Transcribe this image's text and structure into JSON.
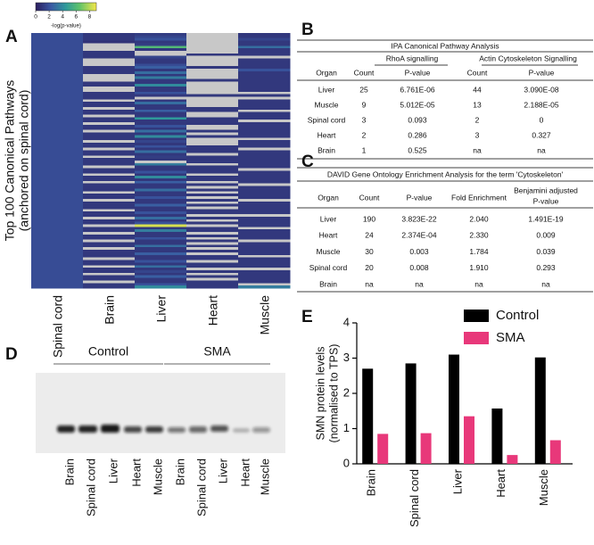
{
  "panel_a": {
    "letter": "A",
    "colorbar": {
      "label": "-log(p-value)",
      "clim": [
        0,
        9
      ],
      "ticks": [
        0,
        2,
        4,
        6,
        8
      ]
    },
    "ylabel": [
      "Top 100 Canonical Pathways",
      "(anchored on spinal cord)"
    ],
    "columns": [
      "Spinal cord",
      "Brain",
      "Liver",
      "Heart",
      "Muscle"
    ],
    "rows": [
      [
        1.8,
        1,
        1.2,
        null,
        1
      ],
      [
        1.8,
        1,
        1.5,
        null,
        1
      ],
      [
        1.8,
        1,
        2,
        null,
        1.5
      ],
      [
        1.8,
        0.8,
        1,
        null,
        1
      ],
      [
        1.8,
        null,
        1.2,
        null,
        1
      ],
      [
        1.8,
        null,
        6,
        null,
        3
      ],
      [
        1.8,
        null,
        1,
        null,
        1
      ],
      [
        1.8,
        1,
        null,
        null,
        1
      ],
      [
        1.8,
        1,
        null,
        1,
        1
      ],
      [
        1.8,
        1,
        1.5,
        null,
        null
      ],
      [
        1.8,
        null,
        1,
        null,
        1
      ],
      [
        1.8,
        null,
        1,
        null,
        1
      ],
      [
        1.8,
        null,
        1.8,
        null,
        1
      ],
      [
        1.8,
        1,
        2.5,
        1,
        1
      ],
      [
        1.8,
        1,
        1,
        null,
        2
      ],
      [
        1.8,
        1,
        3,
        null,
        1
      ],
      [
        1.8,
        null,
        1,
        null,
        1
      ],
      [
        1.8,
        null,
        3.5,
        null,
        1
      ],
      [
        1.8,
        null,
        1,
        1,
        1
      ],
      [
        1.8,
        1,
        1,
        null,
        1
      ],
      [
        1.8,
        1,
        4,
        null,
        1
      ],
      [
        1.8,
        null,
        1,
        null,
        1
      ],
      [
        1.8,
        null,
        1,
        null,
        1
      ],
      [
        1.8,
        1,
        2,
        null,
        null
      ],
      [
        1.8,
        1,
        1,
        1,
        1
      ],
      [
        1.8,
        1,
        null,
        null,
        null
      ],
      [
        1.8,
        null,
        1,
        null,
        1
      ],
      [
        1.8,
        1,
        3,
        null,
        1
      ],
      [
        1.8,
        1,
        1,
        null,
        1
      ],
      [
        1.8,
        null,
        1,
        1,
        1
      ],
      [
        1.8,
        1,
        2.5,
        1,
        null
      ],
      [
        1.8,
        1,
        1,
        null,
        1
      ],
      [
        1.8,
        null,
        1,
        null,
        1
      ],
      [
        1.8,
        1,
        4.5,
        1,
        1
      ],
      [
        1.8,
        1,
        1,
        1,
        null
      ],
      [
        1.8,
        null,
        1,
        1,
        1
      ],
      [
        1.8,
        1,
        2,
        null,
        1
      ],
      [
        1.8,
        1,
        1,
        null,
        1
      ],
      [
        1.8,
        null,
        3,
        1,
        1
      ],
      [
        1.8,
        1,
        1,
        null,
        1
      ],
      [
        1.8,
        1,
        4,
        1,
        1
      ],
      [
        1.8,
        1,
        1,
        null,
        null
      ],
      [
        1.8,
        null,
        1.5,
        null,
        1
      ],
      [
        1.8,
        1,
        1,
        null,
        1
      ],
      [
        1.8,
        1,
        2,
        1,
        1
      ],
      [
        1.8,
        null,
        1,
        1,
        null
      ],
      [
        1.8,
        1,
        3,
        1,
        1
      ],
      [
        1.8,
        1,
        1,
        null,
        1
      ],
      [
        1.8,
        null,
        1.2,
        1,
        1
      ],
      [
        1.8,
        1,
        1,
        1,
        1
      ],
      [
        1.8,
        1,
        null,
        1,
        1
      ],
      [
        1.8,
        1,
        3.5,
        null,
        1
      ],
      [
        1.8,
        null,
        1,
        1,
        1
      ],
      [
        1.8,
        1,
        1,
        1,
        null
      ],
      [
        1.8,
        1,
        2,
        1,
        1
      ],
      [
        1.8,
        null,
        1,
        null,
        1
      ],
      [
        1.8,
        1,
        4,
        1,
        1
      ],
      [
        1.8,
        1,
        1,
        1,
        1
      ],
      [
        1.8,
        null,
        2.5,
        null,
        1
      ],
      [
        1.8,
        1,
        1,
        1,
        null
      ],
      [
        1.8,
        1,
        1,
        null,
        1
      ],
      [
        1.8,
        1,
        3,
        1,
        1
      ],
      [
        1.8,
        null,
        1,
        null,
        1
      ],
      [
        1.8,
        1,
        1,
        1,
        1
      ],
      [
        1.8,
        1,
        2,
        null,
        1
      ],
      [
        1.8,
        null,
        1,
        1,
        null
      ],
      [
        1.8,
        1,
        1,
        null,
        1
      ],
      [
        1.8,
        1,
        2.5,
        1,
        1
      ],
      [
        1.8,
        1,
        1,
        null,
        1
      ],
      [
        1.8,
        null,
        1,
        1,
        1
      ],
      [
        1.8,
        1,
        2,
        1,
        1
      ],
      [
        1.8,
        1,
        1,
        null,
        null
      ],
      [
        1.8,
        null,
        3,
        1,
        1
      ],
      [
        1.8,
        1,
        1,
        null,
        1
      ],
      [
        1.8,
        1,
        2,
        1,
        1
      ],
      [
        1.8,
        null,
        8.5,
        null,
        1
      ],
      [
        1.8,
        1,
        1,
        1,
        null
      ],
      [
        1.8,
        1,
        3.5,
        1,
        1
      ],
      [
        1.8,
        null,
        1,
        null,
        1
      ],
      [
        1.8,
        1,
        1,
        1,
        1
      ],
      [
        1.8,
        1,
        2,
        null,
        1
      ],
      [
        1.8,
        null,
        1,
        1,
        null
      ],
      [
        1.8,
        1,
        1,
        null,
        1
      ],
      [
        1.8,
        1,
        3,
        1,
        1
      ],
      [
        1.8,
        null,
        1,
        null,
        1
      ],
      [
        1.8,
        1,
        1,
        1,
        1
      ],
      [
        1.8,
        1,
        2.5,
        null,
        1
      ],
      [
        1.8,
        1,
        1,
        1,
        null
      ],
      [
        1.8,
        null,
        1,
        1,
        1
      ],
      [
        1.8,
        1,
        2,
        null,
        1
      ],
      [
        1.8,
        1,
        1,
        1,
        1
      ],
      [
        1.8,
        null,
        3,
        1,
        1
      ],
      [
        1.8,
        1,
        1,
        null,
        null
      ],
      [
        1.8,
        1,
        1.5,
        1,
        1
      ],
      [
        1.8,
        null,
        1,
        null,
        1
      ],
      [
        1.8,
        1,
        2.5,
        1,
        1
      ],
      [
        1.8,
        1,
        1,
        null,
        1
      ],
      [
        1.8,
        null,
        1,
        1,
        1
      ],
      [
        1.8,
        1,
        2,
        1,
        null
      ],
      [
        1.8,
        1,
        4,
        1,
        3.5
      ]
    ]
  },
  "panel_b": {
    "letter": "B",
    "title": "IPA Canonical Pathway Analysis",
    "groups": [
      "RhoA signalling",
      "Actin Cytoskeleton Signalling"
    ],
    "header": [
      "Organ",
      "Count",
      "P-value",
      "Count",
      "P-value"
    ],
    "rows": [
      [
        "Liver",
        "25",
        "6.761E-06",
        "44",
        "3.090E-08"
      ],
      [
        "Muscle",
        "9",
        "5.012E-05",
        "13",
        "2.188E-05"
      ],
      [
        "Spinal cord",
        "3",
        "0.093",
        "2",
        "0"
      ],
      [
        "Heart",
        "2",
        "0.286",
        "3",
        "0.327"
      ],
      [
        "Brain",
        "1",
        "0.525",
        "na",
        "na"
      ]
    ]
  },
  "panel_c": {
    "letter": "C",
    "title": "DAVID Gene Ontology Enrichment Analysis for the term 'Cytoskeleton'",
    "header": [
      "Organ",
      "Count",
      "P-value",
      "Fold Enrichment",
      [
        "Benjamini adjusted",
        "P-value"
      ]
    ],
    "rows": [
      [
        "Liver",
        "190",
        "3.823E-22",
        "2.040",
        "1.491E-19"
      ],
      [
        "Heart",
        "24",
        "2.374E-04",
        "2.330",
        "0.009"
      ],
      [
        "Muscle",
        "30",
        "0.003",
        "1.784",
        "0.039"
      ],
      [
        "Spinal cord",
        "20",
        "0.008",
        "1.910",
        "0.293"
      ],
      [
        "Brain",
        "na",
        "na",
        "na",
        "na"
      ]
    ]
  },
  "panel_d": {
    "letter": "D",
    "groups": [
      {
        "name": "Control",
        "lanes": [
          "Brain",
          "Spinal cord",
          "Liver",
          "Heart",
          "Muscle"
        ]
      },
      {
        "name": "SMA",
        "lanes": [
          "Brain",
          "Spinal cord",
          "Liver",
          "Heart",
          "Muscle"
        ]
      }
    ]
  },
  "panel_e": {
    "letter": "E",
    "type": "bar",
    "ylabel": [
      "SMN protein levels",
      "(normalised to TPS)"
    ],
    "categories": [
      "Brain",
      "Spinal cord",
      "Liver",
      "Heart",
      "Muscle"
    ],
    "series": [
      {
        "name": "Control",
        "color": "#000000",
        "values": [
          2.7,
          2.85,
          3.1,
          1.57,
          3.02
        ]
      },
      {
        "name": "SMA",
        "color": "#e8387a",
        "values": [
          0.85,
          0.87,
          1.35,
          0.25,
          0.67
        ]
      }
    ],
    "ylim": [
      0,
      4
    ],
    "yticks": [
      0,
      1,
      2,
      3,
      4
    ],
    "legend": "upper right"
  }
}
